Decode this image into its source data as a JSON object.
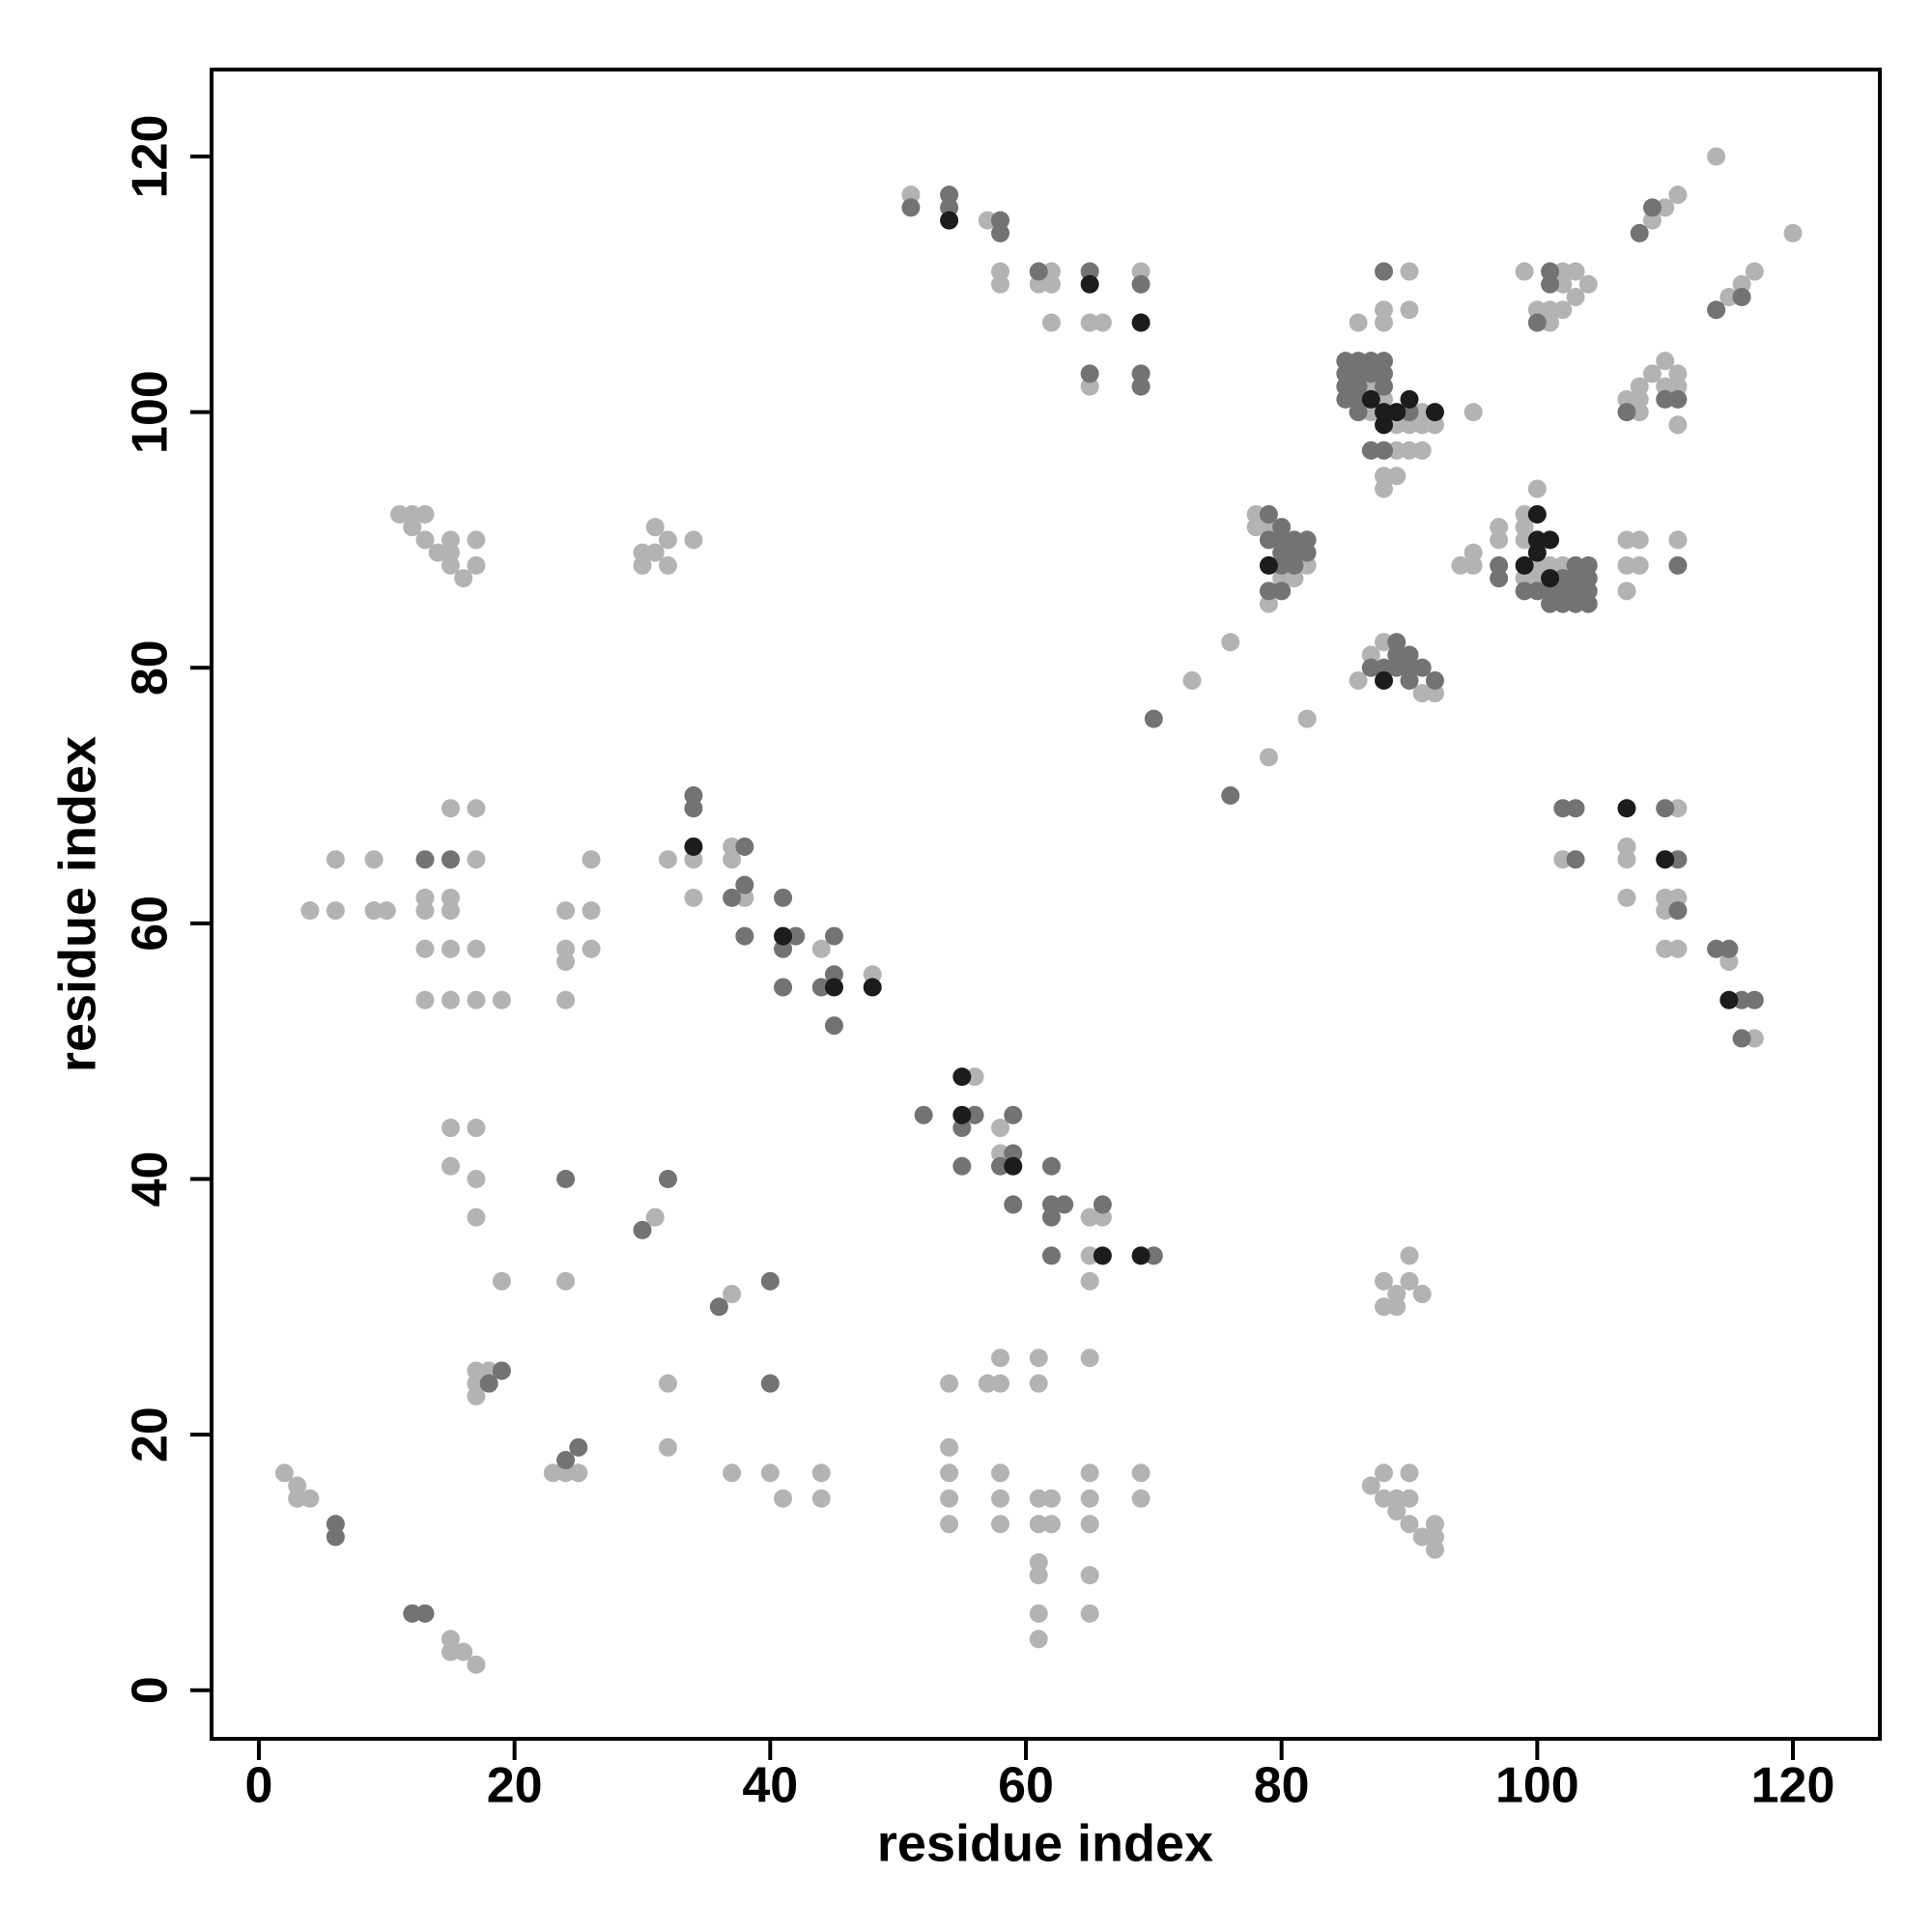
{
  "chart_data": {
    "type": "scatter",
    "xlabel": "residue index",
    "ylabel": "residue index",
    "xlim": [
      -3.7,
      126.8
    ],
    "ylim": [
      -3.8,
      126.8
    ],
    "xticks": [
      0,
      20,
      40,
      60,
      80,
      100,
      120
    ],
    "yticks": [
      0,
      20,
      40,
      60,
      80,
      100,
      120
    ],
    "series": [
      {
        "color": "#b3b3b3",
        "x": [
          2,
          3,
          3,
          4,
          15,
          15,
          16,
          17,
          17,
          18,
          17,
          17,
          23,
          24,
          25,
          19,
          24,
          15,
          17,
          15,
          17,
          17,
          31,
          32,
          32,
          37,
          37,
          40,
          41,
          44,
          44,
          54,
          54,
          54,
          54,
          54,
          57,
          58,
          58,
          61,
          61,
          58,
          58,
          58,
          61,
          62,
          61,
          62,
          61,
          61,
          61,
          61,
          65,
          65,
          65,
          65,
          65,
          65,
          69,
          69,
          87,
          88,
          88,
          89,
          90,
          90,
          89,
          90,
          91,
          92,
          92,
          92,
          88,
          89,
          88,
          89,
          90,
          90,
          91,
          4,
          6,
          6,
          9,
          9,
          10,
          13,
          13,
          13,
          13,
          15,
          15,
          15,
          15,
          15,
          17,
          17,
          17,
          17,
          19,
          24,
          24,
          24,
          24,
          26,
          26,
          26,
          11,
          12,
          13,
          12,
          13,
          14,
          15,
          15,
          15,
          16,
          17,
          17,
          30,
          31,
          30,
          31,
          32,
          32,
          34,
          32,
          34,
          34,
          37,
          37,
          38,
          44,
          48,
          56,
          58,
          58,
          65,
          66,
          65,
          65,
          51,
          57,
          58,
          58,
          62,
          61,
          62,
          62,
          65,
          66,
          65,
          69,
          73,
          76,
          79,
          82,
          78,
          78,
          79,
          82,
          80,
          81,
          79,
          86,
          87,
          88,
          91,
          92,
          87,
          88,
          87,
          91,
          89,
          90,
          91,
          92,
          95,
          89,
          90,
          91,
          88,
          89,
          88,
          86,
          88,
          88,
          90,
          90,
          94,
          95,
          95,
          97,
          97,
          99,
          99,
          100,
          99,
          100,
          101,
          102,
          99,
          100,
          99,
          102,
          103,
          102,
          104,
          103,
          100,
          101,
          102,
          101,
          107,
          108,
          108,
          108,
          109,
          110,
          111,
          110,
          111,
          111,
          109,
          110,
          111,
          114,
          115,
          116,
          117,
          120,
          107,
          107,
          108,
          108,
          107,
          111,
          102,
          107,
          107,
          107,
          111,
          110,
          111,
          110,
          110,
          111,
          115,
          117
        ],
        "values": [
          17,
          16,
          15,
          15,
          4,
          3,
          3,
          2,
          25,
          25,
          24,
          23,
          17,
          17,
          17,
          32,
          32,
          44,
          44,
          41,
          40,
          37,
          37,
          24,
          19,
          31,
          17,
          17,
          15,
          17,
          15,
          24,
          19,
          17,
          15,
          13,
          24,
          24,
          26,
          26,
          24,
          17,
          15,
          13,
          15,
          15,
          13,
          13,
          10,
          9,
          6,
          4,
          26,
          17,
          15,
          13,
          9,
          6,
          17,
          15,
          16,
          17,
          15,
          15,
          17,
          15,
          14,
          13,
          12,
          13,
          12,
          11,
          32,
          31,
          30,
          30,
          32,
          34,
          31,
          61,
          61,
          65,
          65,
          61,
          61,
          62,
          61,
          58,
          54,
          62,
          61,
          58,
          54,
          69,
          69,
          65,
          58,
          54,
          54,
          61,
          58,
          57,
          54,
          65,
          61,
          58,
          92,
          92,
          92,
          91,
          90,
          89,
          90,
          89,
          88,
          87,
          90,
          88,
          89,
          89,
          88,
          91,
          90,
          88,
          90,
          65,
          65,
          62,
          66,
          65,
          62,
          58,
          56,
          48,
          44,
          42,
          37,
          37,
          34,
          32,
          117,
          115,
          111,
          110,
          111,
          110,
          110,
          107,
          107,
          107,
          102,
          111,
          79,
          82,
          73,
          76,
          92,
          91,
          91,
          88,
          87,
          87,
          85,
          79,
          81,
          82,
          78,
          78,
          102,
          101,
          100,
          100,
          99,
          99,
          99,
          99,
          100,
          97,
          97,
          97,
          95,
          95,
          94,
          107,
          108,
          107,
          111,
          108,
          88,
          89,
          88,
          91,
          90,
          92,
          91,
          94,
          90,
          88,
          88,
          88,
          87,
          87,
          111,
          111,
          111,
          110,
          110,
          109,
          108,
          108,
          108,
          107,
          101,
          102,
          101,
          100,
          103,
          104,
          103,
          102,
          102,
          99,
          115,
          116,
          117,
          120,
          109,
          110,
          111,
          114,
          90,
          88,
          90,
          88,
          86,
          90,
          65,
          66,
          65,
          62,
          69,
          62,
          62,
          61,
          58,
          58,
          57,
          51
        ]
      },
      {
        "color": "#737373",
        "x": [
          6,
          6,
          12,
          13,
          18,
          19,
          24,
          25,
          24,
          30,
          32,
          36,
          40,
          40,
          13,
          15,
          34,
          34,
          38,
          38,
          37,
          38,
          41,
          42,
          41,
          41,
          44,
          45,
          45,
          45,
          52,
          56,
          55,
          55,
          59,
          59,
          58,
          59,
          62,
          62,
          63,
          62,
          62,
          66,
          70,
          51,
          54,
          54,
          58,
          58,
          61,
          65,
          69,
          65,
          69,
          69,
          70,
          76,
          79,
          80,
          79,
          80,
          81,
          82,
          80,
          81,
          82,
          80,
          81,
          79,
          80,
          87,
          88,
          89,
          89,
          90,
          90,
          91,
          89,
          90,
          92,
          85,
          86,
          87,
          88,
          85,
          86,
          87,
          88,
          85,
          86,
          88,
          85,
          86,
          86,
          90,
          87,
          88,
          88,
          97,
          97,
          102,
          103,
          104,
          99,
          100,
          101,
          102,
          103,
          104,
          101,
          102,
          103,
          104,
          103,
          104,
          101,
          101,
          100,
          107,
          110,
          111,
          108,
          109,
          114,
          116,
          111,
          102,
          103,
          103,
          110,
          111,
          111,
          114,
          115,
          116,
          117,
          116
        ],
        "values": [
          13,
          12,
          6,
          6,
          24,
          25,
          18,
          19,
          40,
          36,
          40,
          30,
          32,
          24,
          65,
          65,
          70,
          69,
          66,
          63,
          62,
          59,
          62,
          59,
          58,
          55,
          55,
          59,
          56,
          52,
          45,
          45,
          44,
          41,
          45,
          42,
          41,
          38,
          41,
          38,
          38,
          37,
          34,
          38,
          34,
          116,
          117,
          116,
          115,
          114,
          111,
          111,
          110,
          103,
          103,
          102,
          76,
          70,
          92,
          91,
          90,
          90,
          90,
          90,
          89,
          89,
          89,
          88,
          88,
          86,
          86,
          80,
          80,
          82,
          81,
          81,
          80,
          80,
          80,
          79,
          79,
          104,
          104,
          104,
          104,
          103,
          103,
          103,
          103,
          102,
          102,
          102,
          101,
          101,
          100,
          100,
          97,
          97,
          111,
          88,
          87,
          87,
          88,
          88,
          86,
          86,
          86,
          86,
          86,
          86,
          85,
          85,
          85,
          85,
          87,
          87,
          111,
          110,
          107,
          100,
          101,
          101,
          114,
          116,
          108,
          109,
          88,
          69,
          69,
          65,
          69,
          65,
          61,
          58,
          58,
          54,
          54,
          51
        ]
      },
      {
        "color": "#1c1c1c",
        "x": [
          34,
          41,
          45,
          48,
          55,
          55,
          59,
          66,
          69,
          54,
          65,
          69,
          79,
          88,
          87,
          88,
          89,
          90,
          92,
          88,
          100,
          100,
          101,
          100,
          99,
          101,
          107,
          110,
          115
        ],
        "values": [
          66,
          59,
          55,
          55,
          48,
          45,
          41,
          34,
          34,
          115,
          110,
          107,
          88,
          79,
          101,
          100,
          100,
          101,
          100,
          99,
          92,
          90,
          90,
          89,
          88,
          87,
          69,
          65,
          54
        ]
      }
    ]
  }
}
